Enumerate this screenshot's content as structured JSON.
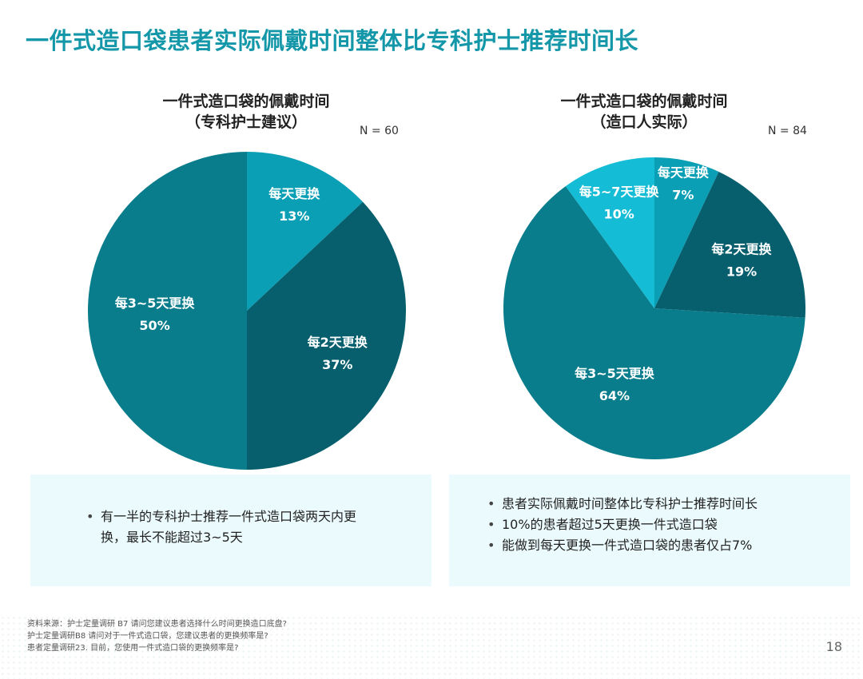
{
  "page": {
    "title": "一件式造口袋患者实际佩戴时间整体比专科护士推荐时间长",
    "page_number": "18"
  },
  "chart_data": [
    {
      "type": "pie",
      "title_line1": "一件式造口袋的佩戴时间",
      "title_line2": "（专科护士建议）",
      "n_label": "N = 60",
      "slices": [
        {
          "label": "每天更换",
          "value": 13,
          "value_text": "13%",
          "color": "#0a9fb5"
        },
        {
          "label": "每2天更换",
          "value": 37,
          "value_text": "37%",
          "color": "#075f6e"
        },
        {
          "label": "每3~5天更换",
          "value": 50,
          "value_text": "50%",
          "color": "#0a7d8c"
        }
      ]
    },
    {
      "type": "pie",
      "title_line1": "一件式造口袋的佩戴时间",
      "title_line2": "（造口人实际）",
      "n_label": "N = 84",
      "slices": [
        {
          "label": "每天更换",
          "value": 7,
          "value_text": "7%",
          "color": "#0a9fb5"
        },
        {
          "label": "每2天更换",
          "value": 19,
          "value_text": "19%",
          "color": "#075f6e"
        },
        {
          "label": "每3~5天更换",
          "value": 64,
          "value_text": "64%",
          "color": "#0a7d8c"
        },
        {
          "label": "每5~7天更换",
          "value": 10,
          "value_text": "10%",
          "color": "#14bcd6"
        }
      ]
    }
  ],
  "notes": {
    "left": [
      "有一半的专科护士推荐一件式造口袋两天内更换，最长不能超过3~5天"
    ],
    "right": [
      "患者实际佩戴时间整体比专科护士推荐时间长",
      "10%的患者超过5天更换一件式造口袋",
      "能做到每天更换一件式造口袋的患者仅占7%"
    ]
  },
  "footnotes": [
    "资料来源：护士定量调研 B7 请问您建议患者选择什么时间更换造口底盘?",
    "护士定量调研B8 请问对于一件式造口袋，您建议患者的更换频率是?",
    "患者定量调研23. 目前，您使用一件式造口袋的更换频率是?"
  ]
}
